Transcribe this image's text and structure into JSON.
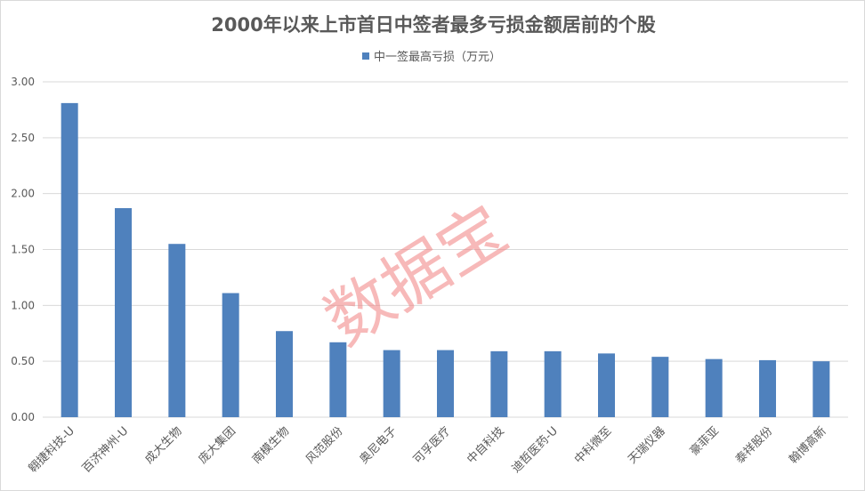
{
  "chart_data": {
    "type": "bar",
    "title": "2000年以来上市首日中签者最多亏损金额居前的个股",
    "legend": {
      "position": "top",
      "label": "中一签最高亏损（万元）",
      "color": "#4f81bd"
    },
    "categories": [
      "翱捷科技-U",
      "百济神州-U",
      "成大生物",
      "庞大集团",
      "南模生物",
      "风范股份",
      "奥尼电子",
      "可孚医疗",
      "中自科技",
      "迪哲医药-U",
      "中科微至",
      "天瑞仪器",
      "豪菲亚",
      "泰祥股份",
      "翰博高新"
    ],
    "series": [
      {
        "name": "中一签最高亏损（万元）",
        "values": [
          2.81,
          1.87,
          1.55,
          1.11,
          0.77,
          0.67,
          0.6,
          0.6,
          0.59,
          0.59,
          0.57,
          0.54,
          0.52,
          0.51,
          0.5
        ]
      }
    ],
    "ylim": [
      0,
      3.0
    ],
    "yticks": [
      "0.00",
      "0.50",
      "1.00",
      "1.50",
      "2.00",
      "2.50",
      "3.00"
    ],
    "grid": true
  },
  "watermark": "数据宝",
  "colors": {
    "bar": "#4f81bd",
    "grid": "#d9d9d9",
    "text": "#595959",
    "watermark": "#f08080"
  }
}
